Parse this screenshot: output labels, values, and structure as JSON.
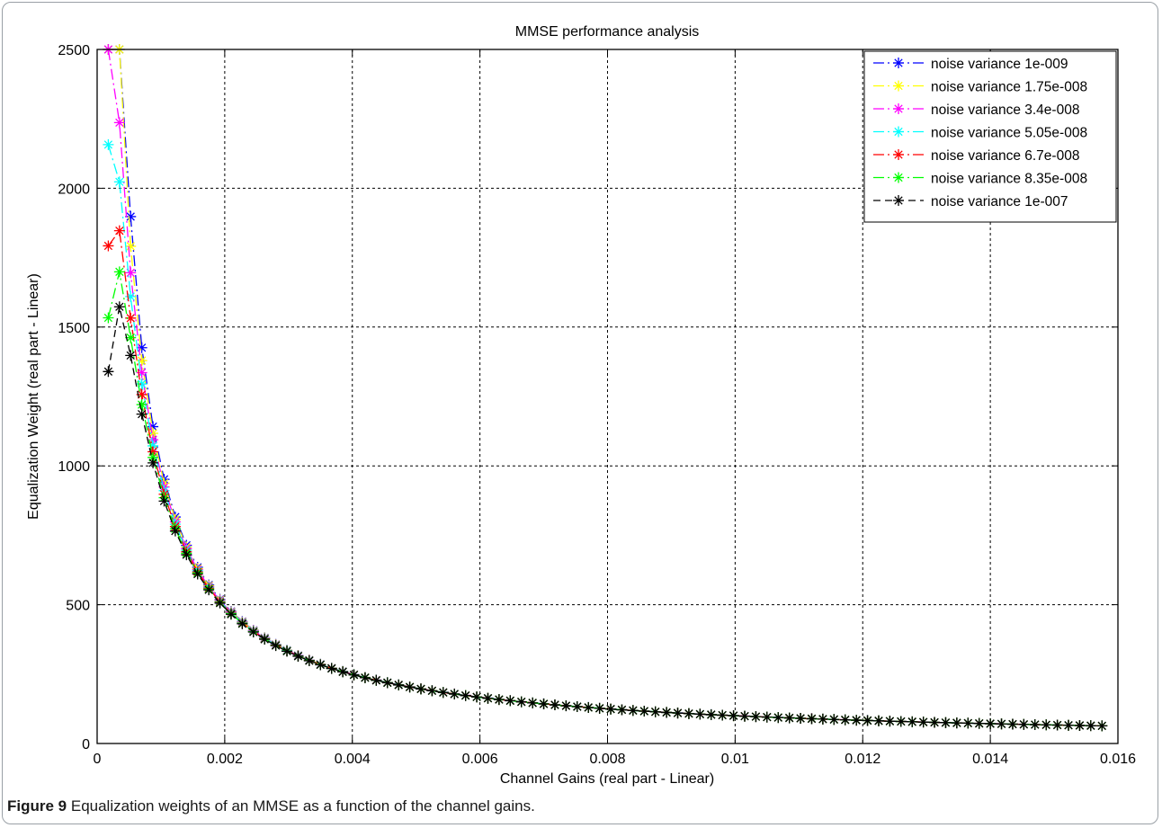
{
  "chart_data": {
    "type": "line",
    "title": "MMSE performance analysis",
    "xlabel": "Channel Gains (real part - Linear)",
    "ylabel": "Equalization Weight (real part - Linear)",
    "xlim": [
      0,
      0.016
    ],
    "ylim": [
      0,
      2500
    ],
    "xticks": [
      0,
      0.002,
      0.004,
      0.006,
      0.008,
      0.01,
      0.012,
      0.014,
      0.016
    ],
    "xtick_labels": [
      "0",
      "0.002",
      "0.004",
      "0.006",
      "0.008",
      "0.01",
      "0.012",
      "0.014",
      "0.016"
    ],
    "yticks": [
      0,
      500,
      1000,
      1500,
      2000,
      2500
    ],
    "ytick_labels": [
      "0",
      "500",
      "1000",
      "1500",
      "2000",
      "2500"
    ],
    "grid": true,
    "legend_position": "top-right",
    "x_first": 0.000175,
    "x_step": 0.000175,
    "n_points": 90,
    "series": [
      {
        "name": "noise variance 1e-009",
        "noise_variance": 1e-09,
        "color": "#0000ff",
        "dash": "12 4 2 4"
      },
      {
        "name": "noise variance 1.75e-008",
        "noise_variance": 1.75e-08,
        "color": "#ffff00",
        "dash": "12 4 2 4"
      },
      {
        "name": "noise variance 3.4e-008",
        "noise_variance": 3.4e-08,
        "color": "#ff00ff",
        "dash": "12 4 2 4"
      },
      {
        "name": "noise variance 5.05e-008",
        "noise_variance": 5.05e-08,
        "color": "#00ffff",
        "dash": "12 4 2 4"
      },
      {
        "name": "noise variance 6.7e-008",
        "noise_variance": 6.7e-08,
        "color": "#ff0000",
        "dash": "12 4 2 4"
      },
      {
        "name": "noise variance 8.35e-008",
        "noise_variance": 8.35e-08,
        "color": "#00ff00",
        "dash": "12 4 2 4"
      },
      {
        "name": "noise variance 1e-007",
        "noise_variance": 1e-07,
        "color": "#000000",
        "dash": "8 5"
      }
    ]
  },
  "caption": {
    "label": "Figure 9",
    "text": "Equalization weights of an MMSE as a function of the channel gains."
  }
}
